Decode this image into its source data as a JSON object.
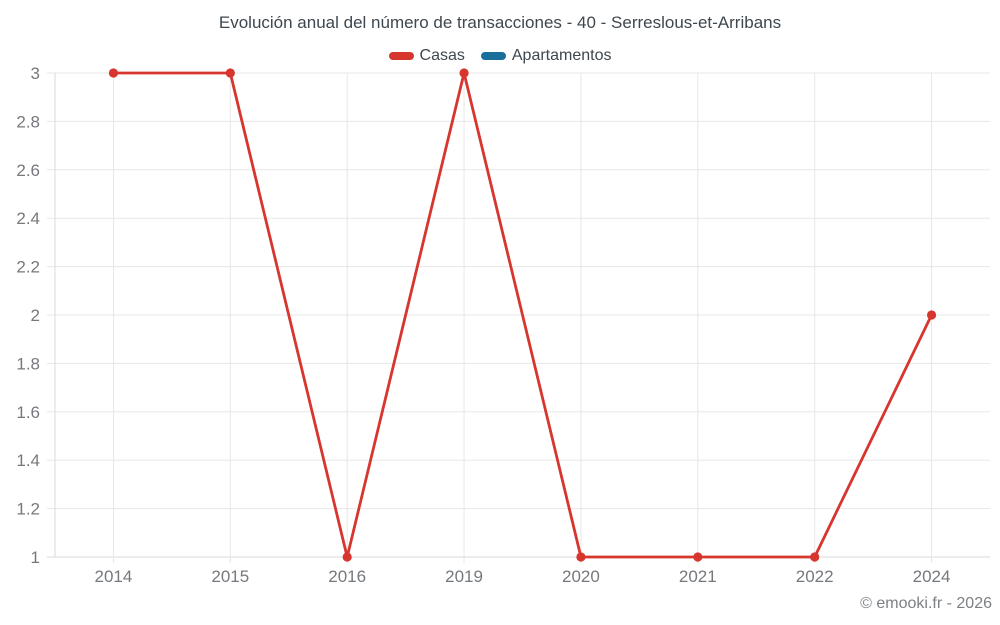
{
  "chart_data": {
    "type": "line",
    "title": "Evolución anual del número de transacciones - 40 - Serreslous-et-Arribans",
    "categories": [
      "2014",
      "2015",
      "2016",
      "2019",
      "2020",
      "2021",
      "2022",
      "2024"
    ],
    "series": [
      {
        "name": "Casas",
        "color": "#d6362e",
        "values": [
          3,
          3,
          1,
          3,
          1,
          1,
          1,
          2
        ]
      },
      {
        "name": "Apartamentos",
        "color": "#1a6f9a",
        "values": []
      }
    ],
    "xlabel": "",
    "ylabel": "",
    "ylim": [
      1,
      3
    ],
    "ytick_step": 0.2,
    "ytick_labels": [
      "1",
      "1.2",
      "1.4",
      "1.6",
      "1.8",
      "2",
      "2.2",
      "2.4",
      "2.6",
      "2.8",
      "3"
    ],
    "grid": true,
    "legend_position": "top"
  },
  "footer": {
    "copyright": "© emooki.fr - 2026"
  },
  "colors": {
    "grid": "#e7e7e7",
    "axis": "#d9d9d9",
    "tick_label": "#75797d",
    "title_text": "#3e474f",
    "background": "#ffffff"
  }
}
